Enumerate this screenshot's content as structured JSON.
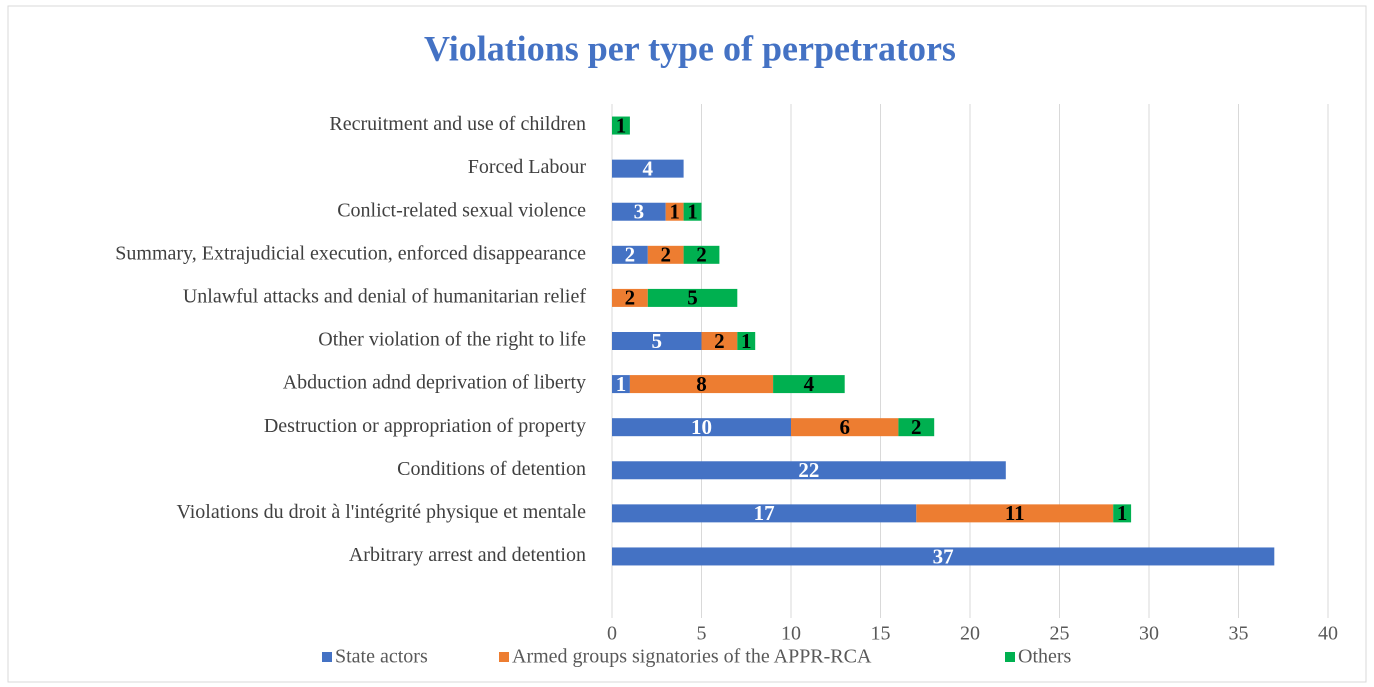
{
  "chart_data": {
    "type": "stacked-bar-horizontal",
    "title": "Violations per type of perpetrators",
    "categories": [
      "Recruitment and use of children",
      "Forced Labour",
      "Conlict-related sexual violence",
      "Summary, Extrajudicial execution, enforced disappearance",
      "Unlawful attacks and denial of humanitarian relief",
      "Other violation of the right to life",
      "Abduction adnd deprivation of liberty",
      "Destruction or appropriation of property",
      "Conditions of detention",
      "Violations du droit à l'intégrité physique et mentale",
      "Arbitrary arrest and detention"
    ],
    "series": [
      {
        "name": "State actors",
        "color": "#4472c4",
        "values": [
          null,
          4,
          3,
          2,
          null,
          5,
          1,
          10,
          22,
          17,
          37
        ]
      },
      {
        "name": "Armed groups signatories of the APPR-RCA",
        "color": "#ed7d31",
        "values": [
          null,
          null,
          1,
          2,
          2,
          2,
          8,
          6,
          null,
          11,
          null
        ]
      },
      {
        "name": "Others",
        "color": "#00b050",
        "values": [
          1,
          null,
          1,
          2,
          5,
          1,
          4,
          2,
          null,
          1,
          null
        ]
      }
    ],
    "xlim": [
      0,
      40
    ],
    "xticks": [
      0,
      5,
      10,
      15,
      20,
      25,
      30,
      35,
      40
    ],
    "grid": true,
    "legend": "bottom"
  }
}
